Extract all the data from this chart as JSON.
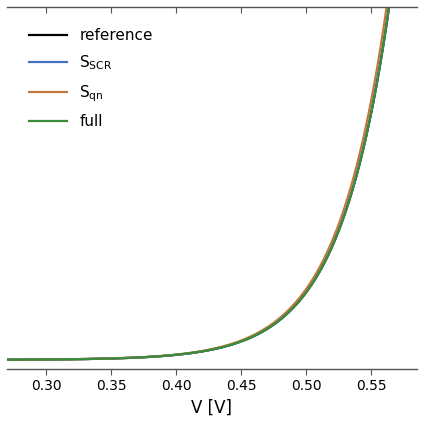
{
  "xlabel": "V [V]",
  "xlim": [
    0.27,
    0.585
  ],
  "ylim": [
    -0.003,
    0.115
  ],
  "xticks": [
    0.3,
    0.35,
    0.4,
    0.45,
    0.5,
    0.55
  ],
  "legend_entries": [
    {
      "label": "reference",
      "color": "#000000",
      "lw": 1.6
    },
    {
      "label": "S$_{\\mathrm{SCR}}$",
      "color": "#4472c4",
      "lw": 1.6
    },
    {
      "label": "S$_{\\mathrm{qn}}$",
      "color": "#c07840",
      "lw": 1.6
    },
    {
      "label": "full",
      "color": "#3a8c3a",
      "lw": 1.6
    }
  ],
  "spine_color": "#555555",
  "figsize": [
    4.24,
    4.24
  ],
  "dpi": 100,
  "curve_params": {
    "V_min": 0.27,
    "V_max": 0.585,
    "n_points": 600,
    "ref_J0": 1.0,
    "ref_n": 1.0,
    "ref_Vt": 0.0385,
    "SCR_J0": 1.0,
    "SCR_n": 1.0,
    "SCR_Vt": 0.0385,
    "qn_J0": 1.05,
    "qn_n": 1.0,
    "qn_Vt": 0.0385,
    "full_J0_fast": 1.0,
    "full_Vt_fast": 0.0385,
    "full_J0_slow": 0.35,
    "full_Vt_slow": 0.075,
    "y_scale": 0.105
  }
}
